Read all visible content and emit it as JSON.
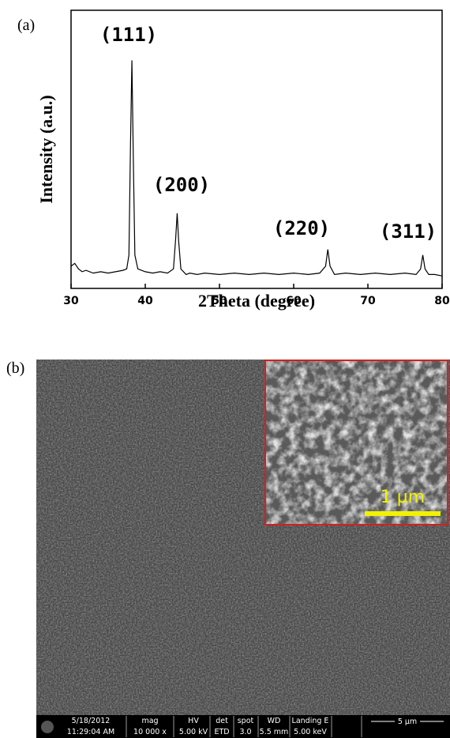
{
  "chart_data": {
    "type": "line",
    "xlabel": "2Theta (degree)",
    "ylabel": "Intensity (a.u.)",
    "x": [
      30,
      30.5,
      31,
      31.5,
      32,
      33,
      34,
      35,
      36,
      37,
      37.5,
      37.8,
      38.0,
      38.2,
      38.4,
      38.6,
      39,
      40,
      41,
      42,
      43,
      43.8,
      44.1,
      44.3,
      44.5,
      44.8,
      45.5,
      46,
      47,
      48,
      50,
      52,
      54,
      56,
      58,
      60,
      62,
      63.5,
      64.3,
      64.6,
      64.9,
      65.5,
      67,
      69,
      71,
      73,
      75,
      76.5,
      77.1,
      77.4,
      77.7,
      78.2,
      79,
      80
    ],
    "series": [
      {
        "color": "#000000",
        "values": [
          8,
          9,
          7,
          6,
          6.5,
          5.5,
          6,
          5.5,
          6,
          6.5,
          7,
          12,
          50,
          82,
          45,
          12,
          7,
          6,
          5.5,
          6,
          5.5,
          7,
          18,
          27,
          17,
          7,
          5,
          5.5,
          5,
          5.5,
          5,
          5.5,
          5,
          5.5,
          5,
          5.5,
          5,
          5.5,
          8,
          14,
          8,
          5,
          5.5,
          5,
          5.5,
          5,
          5.5,
          5,
          7,
          12,
          7,
          5,
          5,
          4.5
        ]
      }
    ],
    "xlim": [
      30,
      80
    ],
    "xticks": [
      30,
      40,
      50,
      60,
      70,
      80
    ],
    "ylim": [
      0,
      100
    ],
    "annotations": [
      "(111)",
      "(200)",
      "(220)",
      "(311)"
    ]
  },
  "panel_labels": [
    "(a)",
    "(b)"
  ],
  "sem": {
    "inset_scale": "1 µm",
    "info": [
      "5/18/2012",
      "11:29:04 AM",
      "mag",
      "10 000 x",
      "HV",
      "5.00 kV",
      "det",
      "ETD",
      "spot",
      "3.0",
      "WD",
      "5.5 mm",
      "Landing E",
      "5.00 keV",
      "5 µm"
    ]
  }
}
